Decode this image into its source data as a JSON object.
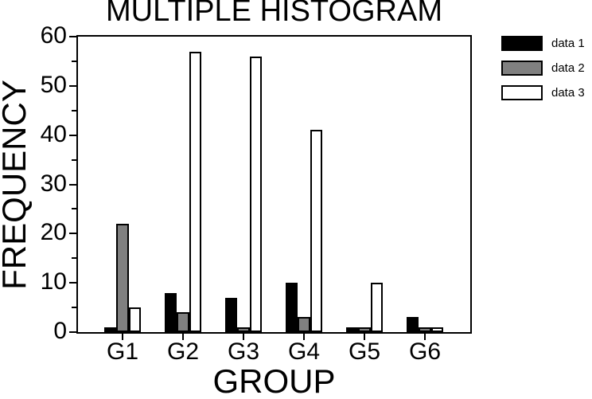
{
  "chart_data": {
    "type": "bar",
    "title": "MULTIPLE HISTOGRAM",
    "xlabel": "GROUP",
    "ylabel": "FREQUENCY",
    "categories": [
      "G1",
      "G2",
      "G3",
      "G4",
      "G5",
      "G6"
    ],
    "series": [
      {
        "name": "data 1",
        "color": "#000000",
        "values": [
          1,
          8,
          7,
          10,
          1,
          3
        ]
      },
      {
        "name": "data 2",
        "color": "#808080",
        "values": [
          22,
          4,
          1,
          3,
          1,
          1
        ]
      },
      {
        "name": "data 3",
        "color": "#ffffff",
        "values": [
          5,
          57,
          56,
          41,
          10,
          1
        ]
      }
    ],
    "ylim": [
      0,
      60
    ],
    "ytick_step": 10,
    "yminor_step": 5,
    "ytick_labels": [
      "0",
      "10",
      "20",
      "30",
      "40",
      "50",
      "60"
    ],
    "grid": false,
    "legend_position": "right",
    "bar_outline_color": "#000000",
    "background_color": "#ffffff"
  }
}
